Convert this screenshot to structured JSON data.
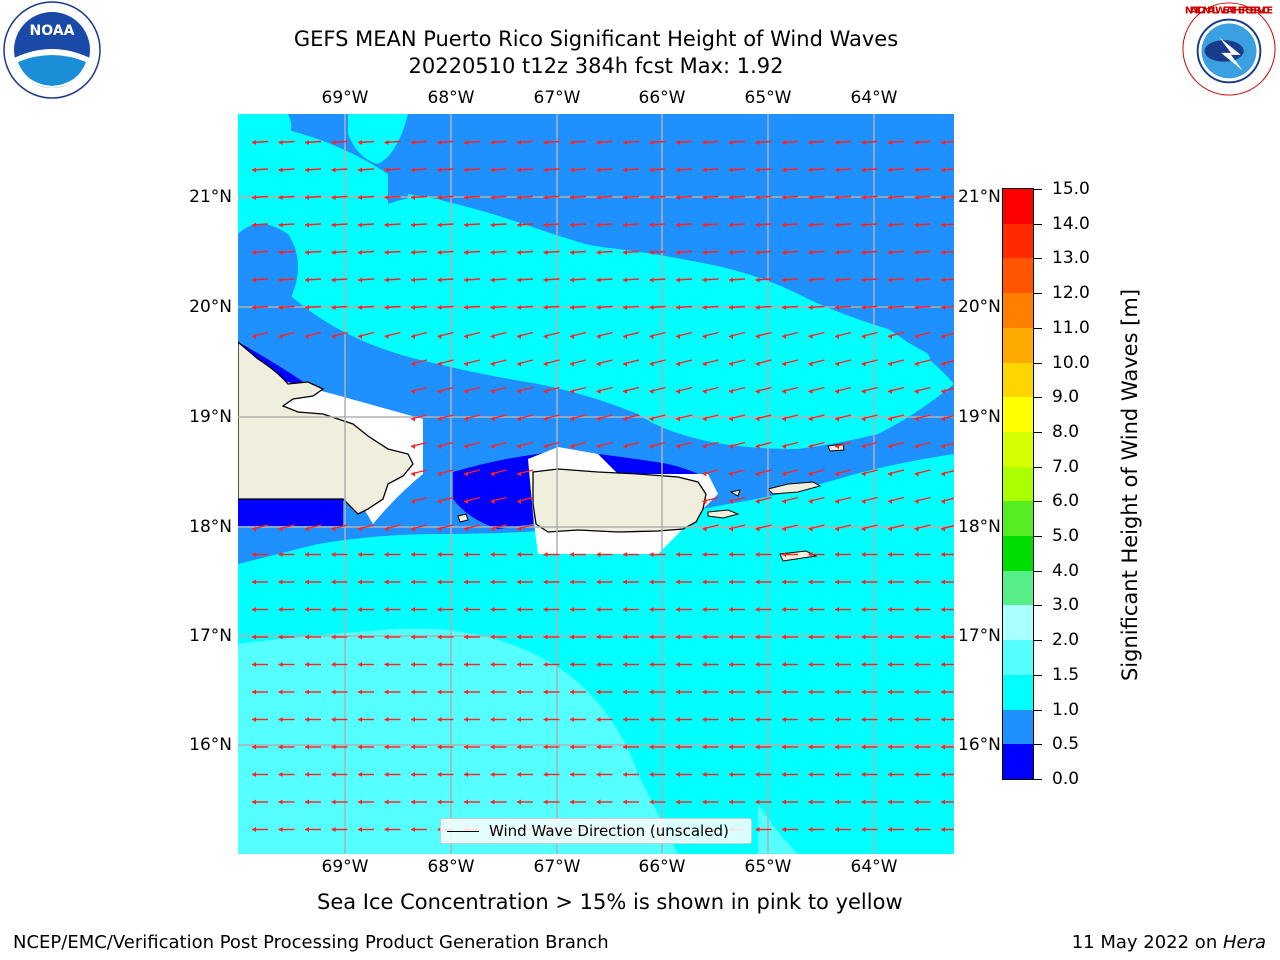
{
  "title": {
    "line1": "GEFS MEAN Puerto Rico Significant Height of Wind Waves",
    "line2": "20220510 t12z 384h fcst   Max: 1.92"
  },
  "map": {
    "lon_labels": [
      "69°W",
      "68°W",
      "67°W",
      "66°W",
      "65°W",
      "64°W"
    ],
    "lat_labels": [
      "21°N",
      "20°N",
      "19°N",
      "18°N",
      "17°N",
      "16°N"
    ],
    "arrow_color": "#ff2020",
    "coast_color": "#000000",
    "land_color": "#f0eedc",
    "wave_direction": "from east (westward)"
  },
  "colorbar": {
    "title": "Significant Height of Wind Waves [m]",
    "ticks": [
      "15.0",
      "14.0",
      "13.0",
      "12.0",
      "11.0",
      "10.0",
      "9.0",
      "8.0",
      "7.0",
      "6.0",
      "5.0",
      "4.0",
      "3.0",
      "2.0",
      "1.5",
      "1.0",
      "0.5",
      "0.0"
    ],
    "colors": [
      "#ff0000",
      "#ff2a00",
      "#ff5500",
      "#ff8000",
      "#ffaa00",
      "#ffd500",
      "#ffff00",
      "#d5ff00",
      "#aaff00",
      "#55ee22",
      "#00dd00",
      "#55ee88",
      "#aaffff",
      "#55ffff",
      "#00ffff",
      "#1e90ff",
      "#0000ff"
    ]
  },
  "legend": {
    "label": "Wind Wave Direction (unscaled)"
  },
  "subtitle": "Sea Ice Concentration > 15% is shown in pink to yellow",
  "footer": {
    "left": "NCEP/EMC/Verification Post Processing Product Generation Branch",
    "right_prefix": "11 May 2022 on ",
    "right_host": "Hera"
  },
  "logos": {
    "noaa_text": "NOAA",
    "nws_text": "NATIONAL WEATHER SERVICE"
  }
}
